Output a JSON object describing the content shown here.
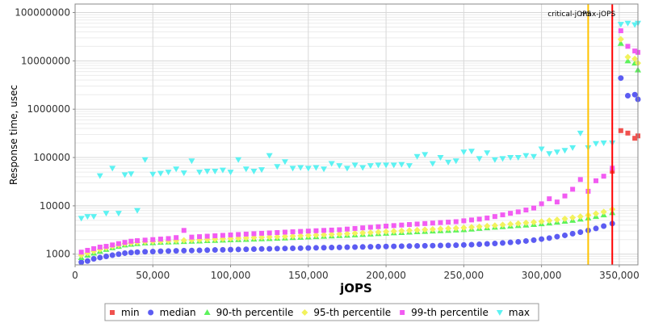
{
  "chart_data": {
    "type": "scatter",
    "title": "",
    "xlabel": "jOPS",
    "ylabel": "Response time, usec",
    "xlim": [
      0,
      362000
    ],
    "ylim": [
      600,
      150000000
    ],
    "y_scale": "log",
    "grid": true,
    "x_ticks": [
      {
        "value": 0,
        "label": "0"
      },
      {
        "value": 50000,
        "label": "50,000"
      },
      {
        "value": 100000,
        "label": "100,000"
      },
      {
        "value": 150000,
        "label": "150,000"
      },
      {
        "value": 200000,
        "label": "200,000"
      },
      {
        "value": 250000,
        "label": "250,000"
      },
      {
        "value": 300000,
        "label": "300,000"
      },
      {
        "value": 350000,
        "label": "350,000"
      }
    ],
    "y_ticks": [
      {
        "value": 1000,
        "label": "1000"
      },
      {
        "value": 10000,
        "label": "10000"
      },
      {
        "value": 100000,
        "label": "100000"
      },
      {
        "value": 1000000,
        "label": "1000000"
      },
      {
        "value": 10000000,
        "label": "10000000"
      },
      {
        "value": 100000000,
        "label": "100000000"
      }
    ],
    "reference_lines": [
      {
        "label": "critical-jOPS",
        "x": 330000,
        "color": "#ffc200"
      },
      {
        "label": "max-jOPS",
        "x": 345500,
        "color": "#ff0000"
      }
    ],
    "legend_position": "bottom",
    "series": [
      {
        "name": "min",
        "color": "#f0524f",
        "marker": "square",
        "x": [
          345500,
          351000,
          355500,
          360000,
          362000
        ],
        "y": [
          52000,
          360000,
          320000,
          250000,
          280000
        ]
      },
      {
        "name": "median",
        "color": "#5c5cf2",
        "marker": "circle",
        "x": [
          4000,
          8000,
          12000,
          16000,
          20000,
          24000,
          28000,
          32000,
          36000,
          40000,
          45000,
          50000,
          55000,
          60000,
          65000,
          70000,
          75000,
          80000,
          85000,
          90000,
          95000,
          100000,
          105000,
          110000,
          115000,
          120000,
          125000,
          130000,
          135000,
          140000,
          145000,
          150000,
          155000,
          160000,
          165000,
          170000,
          175000,
          180000,
          185000,
          190000,
          195000,
          200000,
          205000,
          210000,
          215000,
          220000,
          225000,
          230000,
          235000,
          240000,
          245000,
          250000,
          255000,
          260000,
          265000,
          270000,
          275000,
          280000,
          285000,
          290000,
          295000,
          300000,
          305000,
          310000,
          315000,
          320000,
          325000,
          330000,
          335000,
          340000,
          345500,
          351000,
          355500,
          360000,
          362000
        ],
        "y": [
          680,
          720,
          800,
          850,
          900,
          950,
          1000,
          1050,
          1080,
          1100,
          1120,
          1130,
          1150,
          1160,
          1170,
          1180,
          1190,
          1200,
          1210,
          1220,
          1230,
          1240,
          1250,
          1260,
          1270,
          1280,
          1290,
          1300,
          1310,
          1320,
          1330,
          1340,
          1350,
          1360,
          1370,
          1380,
          1390,
          1400,
          1410,
          1420,
          1430,
          1440,
          1450,
          1460,
          1470,
          1480,
          1490,
          1500,
          1510,
          1520,
          1530,
          1550,
          1570,
          1600,
          1630,
          1660,
          1700,
          1750,
          1800,
          1870,
          1950,
          2050,
          2150,
          2300,
          2450,
          2650,
          2850,
          3100,
          3400,
          3800,
          4300,
          4400000,
          1900000,
          2000000,
          1600000
        ]
      },
      {
        "name": "90-th percentile",
        "color": "#5cf25c",
        "marker": "triangle-up",
        "x": [
          4000,
          8000,
          12000,
          16000,
          20000,
          24000,
          28000,
          32000,
          36000,
          40000,
          45000,
          50000,
          55000,
          60000,
          65000,
          70000,
          75000,
          80000,
          85000,
          90000,
          95000,
          100000,
          105000,
          110000,
          115000,
          120000,
          125000,
          130000,
          135000,
          140000,
          145000,
          150000,
          155000,
          160000,
          165000,
          170000,
          175000,
          180000,
          185000,
          190000,
          195000,
          200000,
          205000,
          210000,
          215000,
          220000,
          225000,
          230000,
          235000,
          240000,
          245000,
          250000,
          255000,
          260000,
          265000,
          270000,
          275000,
          280000,
          285000,
          290000,
          295000,
          300000,
          305000,
          310000,
          315000,
          320000,
          325000,
          330000,
          335000,
          340000,
          345500,
          351000,
          355500,
          360000,
          362000
        ],
        "y": [
          850,
          950,
          1050,
          1150,
          1250,
          1350,
          1450,
          1550,
          1600,
          1650,
          1700,
          1720,
          1750,
          1780,
          1800,
          1820,
          1850,
          1870,
          1900,
          1920,
          1950,
          1980,
          2000,
          2020,
          2050,
          2080,
          2100,
          2130,
          2160,
          2200,
          2230,
          2260,
          2300,
          2340,
          2380,
          2420,
          2460,
          2500,
          2550,
          2600,
          2650,
          2700,
          2750,
          2800,
          2850,
          2900,
          2950,
          3000,
          3050,
          3100,
          3150,
          3200,
          3300,
          3400,
          3500,
          3600,
          3700,
          3800,
          3900,
          4000,
          4100,
          4250,
          4400,
          4600,
          4800,
          5000,
          5300,
          5600,
          6000,
          6500,
          7200,
          23000000,
          10000000,
          9000000,
          6500000
        ]
      },
      {
        "name": "95-th percentile",
        "color": "#f2f25c",
        "marker": "diamond",
        "x": [
          4000,
          8000,
          12000,
          16000,
          20000,
          24000,
          28000,
          32000,
          36000,
          40000,
          45000,
          50000,
          55000,
          60000,
          65000,
          70000,
          75000,
          80000,
          85000,
          90000,
          95000,
          100000,
          105000,
          110000,
          115000,
          120000,
          125000,
          130000,
          135000,
          140000,
          145000,
          150000,
          155000,
          160000,
          165000,
          170000,
          175000,
          180000,
          185000,
          190000,
          195000,
          200000,
          205000,
          210000,
          215000,
          220000,
          225000,
          230000,
          235000,
          240000,
          245000,
          250000,
          255000,
          260000,
          265000,
          270000,
          275000,
          280000,
          285000,
          290000,
          295000,
          300000,
          305000,
          310000,
          315000,
          320000,
          325000,
          330000,
          335000,
          340000,
          345500,
          351000,
          355500,
          360000,
          362000
        ],
        "y": [
          950,
          1050,
          1150,
          1250,
          1350,
          1450,
          1550,
          1650,
          1700,
          1750,
          1800,
          1820,
          1850,
          1880,
          1900,
          1930,
          1960,
          1990,
          2020,
          2050,
          2080,
          2110,
          2140,
          2170,
          2200,
          2230,
          2260,
          2290,
          2320,
          2360,
          2400,
          2440,
          2480,
          2520,
          2560,
          2600,
          2650,
          2700,
          2750,
          2800,
          2860,
          2920,
          2980,
          3040,
          3100,
          3160,
          3220,
          3280,
          3340,
          3400,
          3460,
          3520,
          3620,
          3720,
          3820,
          3920,
          4050,
          4180,
          4320,
          4460,
          4600,
          4750,
          4950,
          5150,
          5400,
          5700,
          6000,
          6400,
          6900,
          7500,
          8500,
          28000000,
          12000000,
          11000000,
          9000000
        ]
      },
      {
        "name": "99-th percentile",
        "color": "#f25cf2",
        "marker": "square",
        "x": [
          4000,
          8000,
          12000,
          16000,
          20000,
          24000,
          28000,
          32000,
          36000,
          40000,
          45000,
          50000,
          55000,
          60000,
          65000,
          70000,
          75000,
          80000,
          85000,
          90000,
          95000,
          100000,
          105000,
          110000,
          115000,
          120000,
          125000,
          130000,
          135000,
          140000,
          145000,
          150000,
          155000,
          160000,
          165000,
          170000,
          175000,
          180000,
          185000,
          190000,
          195000,
          200000,
          205000,
          210000,
          215000,
          220000,
          225000,
          230000,
          235000,
          240000,
          245000,
          250000,
          255000,
          260000,
          265000,
          270000,
          275000,
          280000,
          285000,
          290000,
          295000,
          300000,
          305000,
          310000,
          315000,
          320000,
          325000,
          330000,
          335000,
          340000,
          345500,
          351000,
          355500,
          360000,
          362000
        ],
        "y": [
          1100,
          1200,
          1300,
          1400,
          1450,
          1550,
          1650,
          1750,
          1850,
          1900,
          1950,
          2000,
          2050,
          2100,
          2200,
          3100,
          2250,
          2300,
          2350,
          2400,
          2450,
          2500,
          2550,
          2600,
          2650,
          2700,
          2750,
          2800,
          2850,
          2900,
          2950,
          3000,
          3050,
          3100,
          3150,
          3200,
          3300,
          3400,
          3500,
          3600,
          3700,
          3800,
          3900,
          4000,
          4100,
          4200,
          4300,
          4400,
          4500,
          4600,
          4700,
          4900,
          5100,
          5300,
          5600,
          6000,
          6500,
          7000,
          7500,
          8200,
          9000,
          11000,
          14000,
          12000,
          16000,
          22000,
          35000,
          20000,
          33000,
          41000,
          60000,
          42000000,
          20000000,
          16000000,
          15000000
        ]
      },
      {
        "name": "max",
        "color": "#5cf2f2",
        "marker": "triangle-down",
        "x": [
          4000,
          8000,
          12000,
          16000,
          20000,
          24000,
          28000,
          32000,
          36000,
          40000,
          45000,
          50000,
          55000,
          60000,
          65000,
          70000,
          75000,
          80000,
          85000,
          90000,
          95000,
          100000,
          105000,
          110000,
          115000,
          120000,
          125000,
          130000,
          135000,
          140000,
          145000,
          150000,
          155000,
          160000,
          165000,
          170000,
          175000,
          180000,
          185000,
          190000,
          195000,
          200000,
          205000,
          210000,
          215000,
          220000,
          225000,
          230000,
          235000,
          240000,
          245000,
          250000,
          255000,
          260000,
          265000,
          270000,
          275000,
          280000,
          285000,
          290000,
          295000,
          300000,
          305000,
          310000,
          315000,
          320000,
          325000,
          330000,
          335000,
          340000,
          345500,
          351000,
          355500,
          360000,
          362000
        ],
        "y": [
          5500,
          6000,
          6000,
          42000,
          7000,
          60000,
          7000,
          44000,
          46000,
          8000,
          90000,
          45000,
          47000,
          50000,
          58000,
          48000,
          85000,
          50000,
          52000,
          52000,
          55000,
          50000,
          90000,
          58000,
          52000,
          56000,
          110000,
          65000,
          82000,
          60000,
          62000,
          60000,
          62000,
          58000,
          75000,
          68000,
          60000,
          70000,
          62000,
          68000,
          70000,
          70000,
          70000,
          72000,
          68000,
          105000,
          115000,
          75000,
          100000,
          80000,
          85000,
          130000,
          135000,
          95000,
          125000,
          90000,
          95000,
          100000,
          100000,
          110000,
          105000,
          150000,
          120000,
          130000,
          140000,
          160000,
          320000,
          160000,
          195000,
          200000,
          200000,
          57000000,
          60000000,
          56000000,
          60000000
        ]
      }
    ]
  }
}
